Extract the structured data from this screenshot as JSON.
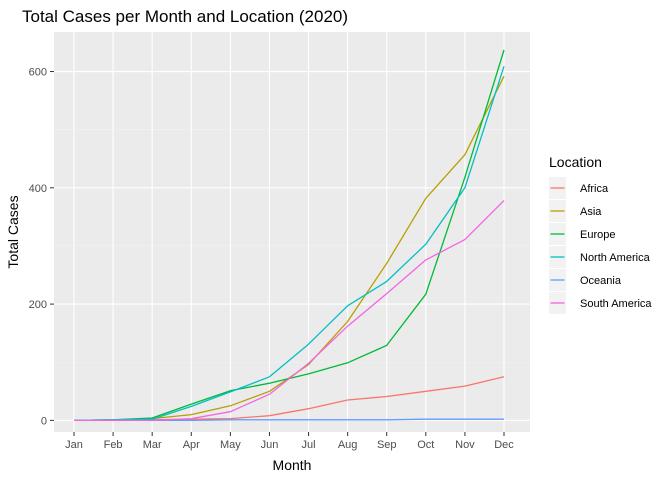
{
  "chart_data": {
    "type": "line",
    "title": "Total Cases per Month and Location (2020)",
    "xlabel": "Month",
    "ylabel": "Total Cases",
    "categories": [
      "Jan",
      "Feb",
      "Mar",
      "Apr",
      "May",
      "Jun",
      "Jul",
      "Aug",
      "Sep",
      "Oct",
      "Nov",
      "Dec"
    ],
    "ylim": [
      -20,
      668
    ],
    "yticks": [
      0,
      200,
      400,
      600
    ],
    "yticks_minor": [
      100,
      300,
      500
    ],
    "grid": true,
    "legend": {
      "title": "Location",
      "position": "right"
    },
    "series": [
      {
        "name": "Africa",
        "color": "#F8766D",
        "values": [
          0,
          0,
          1,
          2,
          3,
          8,
          20,
          35,
          41,
          50,
          59,
          75
        ]
      },
      {
        "name": "Asia",
        "color": "#B79F00",
        "values": [
          0,
          1,
          3,
          10,
          25,
          50,
          96,
          170,
          270,
          382,
          457,
          592
        ]
      },
      {
        "name": "Europe",
        "color": "#00BA38",
        "values": [
          0,
          1,
          4,
          28,
          51,
          64,
          80,
          99,
          129,
          217,
          418,
          637
        ]
      },
      {
        "name": "North America",
        "color": "#00BFC4",
        "values": [
          0,
          1,
          2,
          24,
          49,
          75,
          131,
          197,
          239,
          303,
          400,
          609
        ]
      },
      {
        "name": "Oceania",
        "color": "#619CFF",
        "values": [
          0,
          0,
          0,
          0,
          1,
          1,
          1,
          1,
          1,
          2,
          2,
          2
        ]
      },
      {
        "name": "South America",
        "color": "#F564E3",
        "values": [
          0,
          0,
          0,
          3,
          15,
          45,
          98,
          162,
          218,
          276,
          311,
          378
        ]
      }
    ]
  }
}
